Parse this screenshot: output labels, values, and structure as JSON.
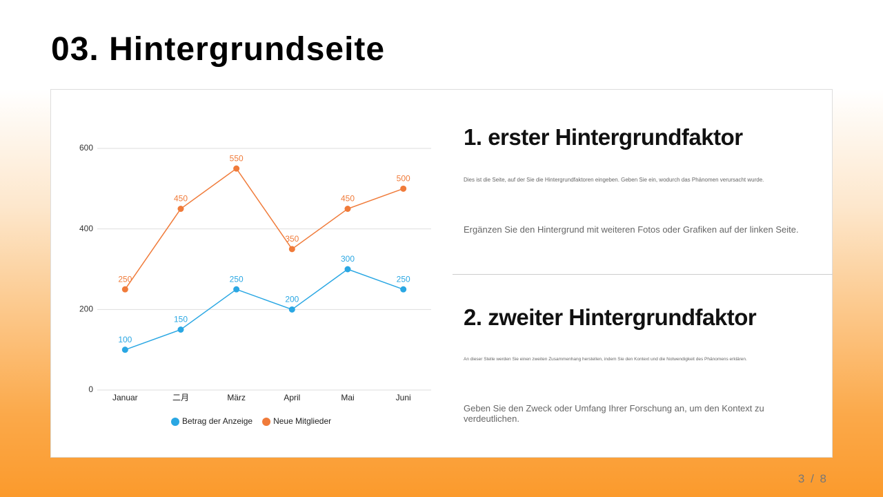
{
  "title": "03. Hintergrundseite",
  "chart_data": {
    "type": "line",
    "categories": [
      "Januar",
      "二月",
      "März",
      "April",
      "Mai",
      "Juni"
    ],
    "series": [
      {
        "name": "Betrag der Anzeige",
        "color": "#2aa7e3",
        "values": [
          100,
          150,
          250,
          200,
          300,
          250
        ]
      },
      {
        "name": "Neue Mitglieder",
        "color": "#f07b3a",
        "values": [
          250,
          450,
          550,
          350,
          450,
          500
        ]
      }
    ],
    "ylim": [
      0,
      600
    ],
    "yticks": [
      0,
      200,
      400,
      600
    ],
    "grid": true,
    "legend": "bottom"
  },
  "sections": [
    {
      "heading": "1. erster Hintergrundfaktor",
      "text": "Dies ist die Seite, auf der Sie die Hintergrundfaktoren eingeben. Geben Sie ein, wodurch das Phänomen verursacht wurde.",
      "note": "Ergänzen Sie den Hintergrund mit weiteren Fotos oder Grafiken auf der linken Seite."
    },
    {
      "heading": "2. zweiter Hintergrundfaktor",
      "text": "An dieser Stelle werden Sie einen zweiten Zusammenhang herstellen, indem Sie den Kontext und die Notwendigkeit des Phänomens erklären.",
      "note": "Geben Sie den Zweck oder Umfang Ihrer Forschung an, um den Kontext zu verdeutlichen."
    }
  ],
  "page": "3 / 8"
}
